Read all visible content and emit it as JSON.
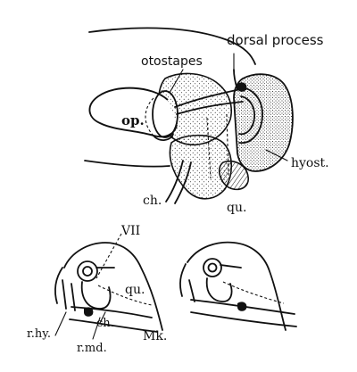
{
  "labels": {
    "dorsal_process": "dorsal process",
    "otostapes": "otostapes",
    "op": "op.",
    "hyost": "hyost.",
    "ch_top": "ch.",
    "qu_top": "qu.",
    "vii": "VII",
    "qu_bottom": "qu.",
    "r_hy": "r.hy.",
    "ch_bottom": "ch.",
    "mk": "Mk.",
    "r_md": "r.md."
  },
  "colors": {
    "ink": "#111111",
    "paper": "#ffffff"
  }
}
